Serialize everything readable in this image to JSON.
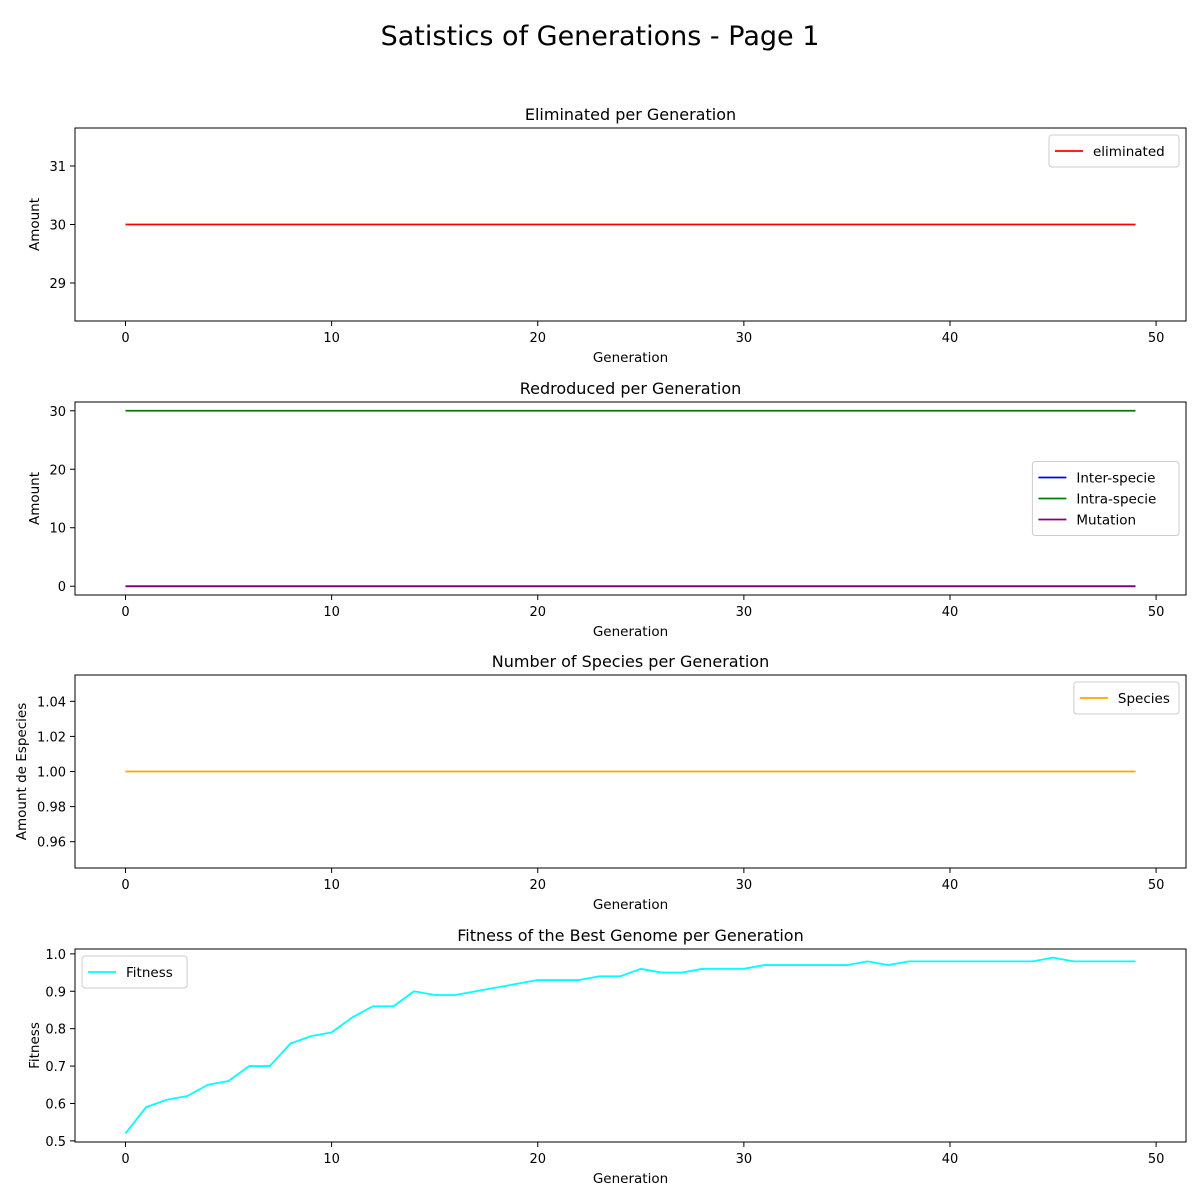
{
  "figure": {
    "title": "Satistics of Generations - Page 1"
  },
  "chart_data": [
    {
      "type": "line",
      "title": "Eliminated per Generation",
      "xlabel": "Generation",
      "ylabel": "Amount",
      "xlim": [
        -2.45,
        51.45
      ],
      "ylim": [
        28.35,
        31.65
      ],
      "xticks": [
        0,
        10,
        20,
        30,
        40,
        50
      ],
      "yticks": [
        29,
        30,
        31
      ],
      "ytick_labels": [
        "29",
        "30",
        "31"
      ],
      "legend_position": "upper right",
      "series": [
        {
          "name": "eliminated",
          "color": "#ff0000",
          "x_start": 0,
          "x_end": 49,
          "constant": 30
        }
      ]
    },
    {
      "type": "line",
      "title": "Redroduced per Generation",
      "xlabel": "Generation",
      "ylabel": "Amount",
      "xlim": [
        -2.45,
        51.45
      ],
      "ylim": [
        -1.5,
        31.5
      ],
      "xticks": [
        0,
        10,
        20,
        30,
        40,
        50
      ],
      "yticks": [
        0,
        10,
        20,
        30
      ],
      "ytick_labels": [
        "0",
        "10",
        "20",
        "30"
      ],
      "legend_position": "center right",
      "series": [
        {
          "name": "Inter-specie",
          "color": "#0000ff",
          "x_start": 0,
          "x_end": 49,
          "constant": 0
        },
        {
          "name": "Intra-specie",
          "color": "#008000",
          "x_start": 0,
          "x_end": 49,
          "constant": 30
        },
        {
          "name": "Mutation",
          "color": "#800080",
          "x_start": 0,
          "x_end": 49,
          "constant": 0
        }
      ]
    },
    {
      "type": "line",
      "title": "Number of Species per Generation",
      "xlabel": "Generation",
      "ylabel": "Amount de Especies",
      "xlim": [
        -2.45,
        51.45
      ],
      "ylim": [
        0.945,
        1.055
      ],
      "xticks": [
        0,
        10,
        20,
        30,
        40,
        50
      ],
      "yticks": [
        0.96,
        0.98,
        1.0,
        1.02,
        1.04
      ],
      "ytick_labels": [
        "0.96",
        "0.98",
        "1.00",
        "1.02",
        "1.04"
      ],
      "legend_position": "upper right",
      "series": [
        {
          "name": "Species",
          "color": "#ffa500",
          "x_start": 0,
          "x_end": 49,
          "constant": 1
        }
      ]
    },
    {
      "type": "line",
      "title": "Fitness of the Best Genome per Generation",
      "xlabel": "Generation",
      "ylabel": "Fitness",
      "xlim": [
        -2.45,
        51.45
      ],
      "ylim": [
        0.497,
        1.013
      ],
      "xticks": [
        0,
        10,
        20,
        30,
        40,
        50
      ],
      "yticks": [
        0.5,
        0.6,
        0.7,
        0.8,
        0.9,
        1.0
      ],
      "ytick_labels": [
        "0.5",
        "0.6",
        "0.7",
        "0.8",
        "0.9",
        "1.0"
      ],
      "legend_position": "upper left",
      "series": [
        {
          "name": "Fitness",
          "color": "#00ffff",
          "values": [
            0.52,
            0.59,
            0.61,
            0.62,
            0.65,
            0.66,
            0.7,
            0.7,
            0.76,
            0.78,
            0.79,
            0.83,
            0.86,
            0.86,
            0.9,
            0.89,
            0.89,
            0.9,
            0.91,
            0.92,
            0.93,
            0.93,
            0.93,
            0.94,
            0.94,
            0.96,
            0.95,
            0.95,
            0.96,
            0.96,
            0.96,
            0.97,
            0.97,
            0.97,
            0.97,
            0.97,
            0.98,
            0.97,
            0.98,
            0.98,
            0.98,
            0.98,
            0.98,
            0.98,
            0.98,
            0.99,
            0.98,
            0.98,
            0.98,
            0.98
          ]
        }
      ]
    }
  ]
}
